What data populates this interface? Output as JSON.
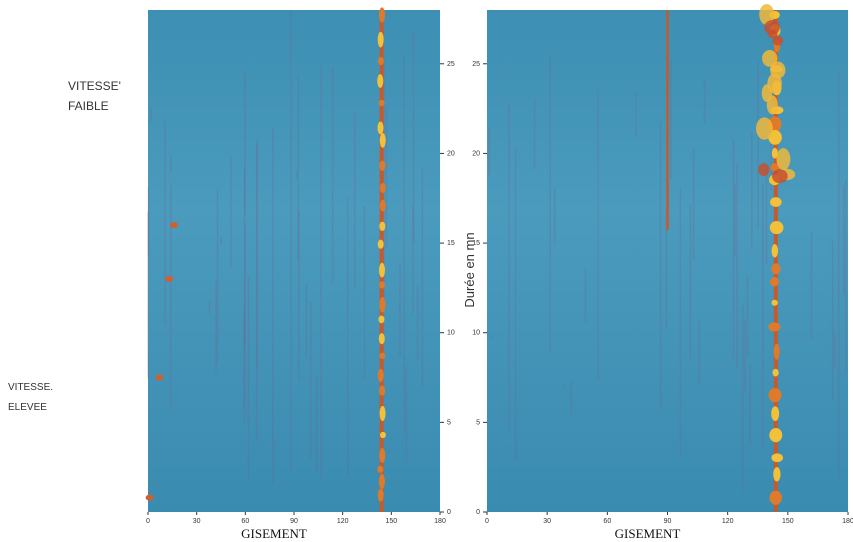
{
  "labels": {
    "slow": [
      "VITESSE'",
      "FAIBLE"
    ],
    "fast": [
      "VITESSE.",
      "ELEVEE"
    ]
  },
  "y_axis_title": "Durée en mn",
  "panels": [
    {
      "x_axis_title": "GISEMENT",
      "xlim": [
        0,
        180
      ],
      "ylim": [
        0,
        28
      ],
      "xticks": [
        0,
        30,
        60,
        90,
        120,
        150,
        180
      ],
      "yticks": [
        0,
        5,
        10,
        15,
        20,
        25
      ]
    },
    {
      "x_axis_title": "GISEMENT",
      "xlim": [
        0,
        180
      ],
      "ylim": [
        0,
        28
      ],
      "xticks": [
        0,
        30,
        60,
        90,
        120,
        150,
        180
      ],
      "yticks": [
        0,
        5,
        10,
        15,
        20,
        25
      ]
    }
  ]
}
